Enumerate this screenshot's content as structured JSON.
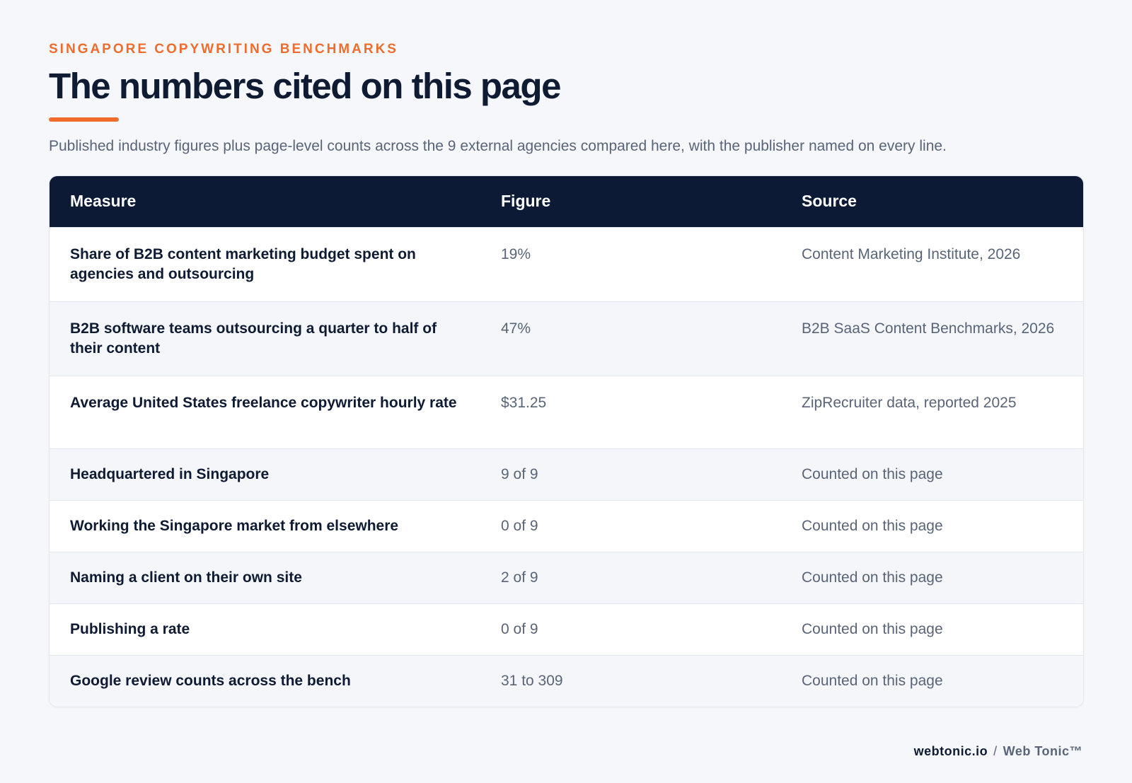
{
  "header": {
    "eyebrow": "SINGAPORE COPYWRITING BENCHMARKS",
    "title": "The numbers cited on this page",
    "subtitle": "Published industry figures plus page-level counts across the 9 external agencies compared here, with the publisher named on every line."
  },
  "table": {
    "columns": [
      "Measure",
      "Figure",
      "Source"
    ],
    "rows": [
      {
        "measure": "Share of B2B content marketing budget spent on agencies and outsourcing",
        "figure": "19%",
        "source": "Content Marketing Institute, 2026"
      },
      {
        "measure": "B2B software teams outsourcing a quarter to half of their content",
        "figure": "47%",
        "source": "B2B SaaS Content Benchmarks, 2026"
      },
      {
        "measure": "Average United States freelance copywriter hourly rate",
        "figure": "$31.25",
        "source": "ZipRecruiter data, reported 2025"
      },
      {
        "measure": "Headquartered in Singapore",
        "figure": "9 of 9",
        "source": "Counted on this page"
      },
      {
        "measure": "Working the Singapore market from elsewhere",
        "figure": "0 of 9",
        "source": "Counted on this page"
      },
      {
        "measure": "Naming a client on their own site",
        "figure": "2 of 9",
        "source": "Counted on this page"
      },
      {
        "measure": "Publishing a rate",
        "figure": "0 of 9",
        "source": "Counted on this page"
      },
      {
        "measure": "Google review counts across the bench",
        "figure": "31 to 309",
        "source": "Counted on this page"
      }
    ]
  },
  "footer": {
    "domain": "webtonic.io",
    "separator": "/",
    "brand": "Web Tonic™"
  },
  "colors": {
    "accent": "#f06c2c",
    "header_bg": "#0d1a35",
    "text_dark": "#0f1b33",
    "text_muted": "#5a6478"
  }
}
